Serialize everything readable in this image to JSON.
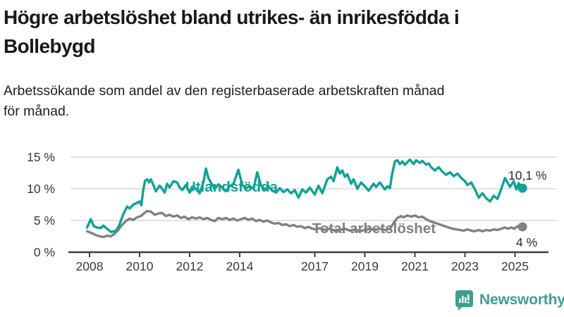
{
  "header": {
    "title": "Högre arbetslöshet bland utrikes- än inrikesfödda i Bollebygd",
    "title_lines": [
      "Högre arbetslöshet bland utrikes- än inrikesfödda i",
      "Bollebygd"
    ],
    "subtitle": "Arbetssökande som andel av den registerbaserade arbetskraften månad för månad.",
    "subtitle_lines": [
      "Arbetssökande som andel av den registerbaserade arbetskraften månad",
      "för månad."
    ]
  },
  "footer": {
    "brand": "Newsworthy"
  },
  "colors": {
    "accent_teal": "#10A296",
    "line_gray": "#808085",
    "brand_teal": "#3E9F90",
    "grid": "#DADADA",
    "axis": "#3F3F3F",
    "tick_text": "#3A3A3A",
    "annotation_text": "#2B2B2B",
    "background": "#FFFFFF"
  },
  "chart_data": {
    "type": "line",
    "title": "Högre arbetslöshet bland utrikes- än inrikesfödda i Bollebygd",
    "subtitle": "Arbetssökande som andel av den registerbaserade arbetskraften månad för månad.",
    "unit": "%",
    "xlabel": "",
    "ylabel": "",
    "xlim": [
      2007.8,
      2025.7
    ],
    "ylim": [
      0,
      15
    ],
    "grid": "horizontal",
    "legend_position": "inline-labels",
    "x_ticks": [
      "2008",
      "2010",
      "2012",
      "2014",
      "2017",
      "2019",
      "2021",
      "2023",
      "2025"
    ],
    "x_tick_years": [
      2008,
      2010,
      2012,
      2014,
      2017,
      2019,
      2021,
      2023,
      2025
    ],
    "y_ticks": [
      {
        "value": 0,
        "label": "0 %"
      },
      {
        "value": 5,
        "label": "5 %"
      },
      {
        "value": 10,
        "label": "10 %"
      },
      {
        "value": 15,
        "label": "15 %"
      }
    ],
    "series": [
      {
        "name": "Total arbetslöshet",
        "color": "#808085",
        "end_label": "4 %",
        "end_value": 4.0,
        "points": [
          [
            2007.9,
            3.3
          ],
          [
            2008.1,
            3.0
          ],
          [
            2008.25,
            2.7
          ],
          [
            2008.4,
            2.5
          ],
          [
            2008.55,
            2.4
          ],
          [
            2008.7,
            2.6
          ],
          [
            2008.85,
            2.5
          ],
          [
            2009.0,
            2.9
          ],
          [
            2009.15,
            3.5
          ],
          [
            2009.3,
            4.3
          ],
          [
            2009.45,
            4.9
          ],
          [
            2009.6,
            5.3
          ],
          [
            2009.75,
            5.1
          ],
          [
            2009.9,
            5.5
          ],
          [
            2010.05,
            5.7
          ],
          [
            2010.2,
            6.2
          ],
          [
            2010.3,
            6.5
          ],
          [
            2010.45,
            6.4
          ],
          [
            2010.6,
            5.9
          ],
          [
            2010.75,
            6.1
          ],
          [
            2010.9,
            6.2
          ],
          [
            2011.05,
            5.7
          ],
          [
            2011.2,
            5.9
          ],
          [
            2011.35,
            5.6
          ],
          [
            2011.5,
            5.8
          ],
          [
            2011.65,
            5.4
          ],
          [
            2011.8,
            5.6
          ],
          [
            2011.95,
            5.2
          ],
          [
            2012.1,
            5.5
          ],
          [
            2012.25,
            5.3
          ],
          [
            2012.4,
            5.5
          ],
          [
            2012.55,
            5.2
          ],
          [
            2012.7,
            5.4
          ],
          [
            2012.85,
            5.1
          ],
          [
            2013.0,
            4.9
          ],
          [
            2013.15,
            5.4
          ],
          [
            2013.3,
            5.2
          ],
          [
            2013.45,
            5.4
          ],
          [
            2013.6,
            5.1
          ],
          [
            2013.75,
            5.3
          ],
          [
            2013.9,
            5.0
          ],
          [
            2014.05,
            5.2
          ],
          [
            2014.2,
            5.4
          ],
          [
            2014.35,
            5.1
          ],
          [
            2014.5,
            5.3
          ],
          [
            2014.65,
            4.9
          ],
          [
            2014.8,
            5.1
          ],
          [
            2014.95,
            4.8
          ],
          [
            2015.1,
            5.0
          ],
          [
            2015.25,
            4.7
          ],
          [
            2015.4,
            4.5
          ],
          [
            2015.55,
            4.6
          ],
          [
            2015.7,
            4.3
          ],
          [
            2015.85,
            4.4
          ],
          [
            2016.0,
            4.1
          ],
          [
            2016.15,
            4.3
          ],
          [
            2016.3,
            4.0
          ],
          [
            2016.45,
            4.1
          ],
          [
            2016.6,
            3.8
          ],
          [
            2016.75,
            4.0
          ],
          [
            2016.9,
            3.7
          ],
          [
            2017.05,
            3.6
          ],
          [
            2017.2,
            3.8
          ],
          [
            2017.4,
            3.5
          ],
          [
            2017.6,
            3.7
          ],
          [
            2017.8,
            3.4
          ],
          [
            2018.0,
            3.5
          ],
          [
            2018.2,
            3.7
          ],
          [
            2018.4,
            3.4
          ],
          [
            2018.6,
            3.6
          ],
          [
            2018.8,
            3.3
          ],
          [
            2019.0,
            3.5
          ],
          [
            2019.2,
            3.7
          ],
          [
            2019.4,
            3.5
          ],
          [
            2019.6,
            3.7
          ],
          [
            2019.8,
            3.5
          ],
          [
            2020.0,
            3.7
          ],
          [
            2020.15,
            4.6
          ],
          [
            2020.3,
            5.4
          ],
          [
            2020.45,
            5.7
          ],
          [
            2020.55,
            5.5
          ],
          [
            2020.7,
            5.8
          ],
          [
            2020.85,
            5.6
          ],
          [
            2021.0,
            5.8
          ],
          [
            2021.15,
            5.5
          ],
          [
            2021.3,
            5.6
          ],
          [
            2021.45,
            5.2
          ],
          [
            2021.6,
            4.9
          ],
          [
            2021.75,
            4.7
          ],
          [
            2021.9,
            4.5
          ],
          [
            2022.05,
            4.3
          ],
          [
            2022.2,
            4.1
          ],
          [
            2022.35,
            3.9
          ],
          [
            2022.5,
            3.7
          ],
          [
            2022.65,
            3.6
          ],
          [
            2022.8,
            3.5
          ],
          [
            2022.95,
            3.4
          ],
          [
            2023.1,
            3.6
          ],
          [
            2023.25,
            3.4
          ],
          [
            2023.4,
            3.3
          ],
          [
            2023.55,
            3.5
          ],
          [
            2023.7,
            3.3
          ],
          [
            2023.85,
            3.5
          ],
          [
            2024.0,
            3.4
          ],
          [
            2024.15,
            3.6
          ],
          [
            2024.3,
            3.5
          ],
          [
            2024.45,
            3.7
          ],
          [
            2024.6,
            3.9
          ],
          [
            2024.72,
            3.7
          ],
          [
            2024.85,
            3.9
          ],
          [
            2024.97,
            3.7
          ],
          [
            2025.1,
            4.1
          ],
          [
            2025.2,
            3.9
          ],
          [
            2025.3,
            4.0
          ]
        ]
      },
      {
        "name": "Utlandsfödda",
        "color": "#10A296",
        "end_label": "10,1 %",
        "end_value": 10.1,
        "points": [
          [
            2007.9,
            3.9
          ],
          [
            2008.05,
            5.2
          ],
          [
            2008.17,
            4.1
          ],
          [
            2008.3,
            3.9
          ],
          [
            2008.45,
            3.8
          ],
          [
            2008.55,
            4.2
          ],
          [
            2008.7,
            3.7
          ],
          [
            2008.85,
            3.2
          ],
          [
            2009.0,
            3.3
          ],
          [
            2009.1,
            3.6
          ],
          [
            2009.2,
            4.4
          ],
          [
            2009.35,
            6.0
          ],
          [
            2009.5,
            7.2
          ],
          [
            2009.6,
            6.9
          ],
          [
            2009.75,
            7.5
          ],
          [
            2009.9,
            7.8
          ],
          [
            2010.0,
            8.0
          ],
          [
            2010.07,
            7.4
          ],
          [
            2010.15,
            9.9
          ],
          [
            2010.22,
            11.3
          ],
          [
            2010.3,
            11.5
          ],
          [
            2010.38,
            11.0
          ],
          [
            2010.45,
            11.5
          ],
          [
            2010.55,
            10.6
          ],
          [
            2010.65,
            9.6
          ],
          [
            2010.8,
            10.5
          ],
          [
            2010.9,
            10.0
          ],
          [
            2011.0,
            9.4
          ],
          [
            2011.1,
            10.8
          ],
          [
            2011.2,
            10.2
          ],
          [
            2011.35,
            11.2
          ],
          [
            2011.5,
            11.0
          ],
          [
            2011.6,
            10.2
          ],
          [
            2011.7,
            9.8
          ],
          [
            2011.85,
            10.6
          ],
          [
            2012.0,
            9.4
          ],
          [
            2012.1,
            10.3
          ],
          [
            2012.25,
            10.0
          ],
          [
            2012.4,
            9.3
          ],
          [
            2012.55,
            11.0
          ],
          [
            2012.65,
            13.2
          ],
          [
            2012.75,
            11.7
          ],
          [
            2012.9,
            10.6
          ],
          [
            2013.0,
            10.0
          ],
          [
            2013.15,
            10.7
          ],
          [
            2013.3,
            10.2
          ],
          [
            2013.45,
            9.6
          ],
          [
            2013.6,
            10.4
          ],
          [
            2013.75,
            10.8
          ],
          [
            2013.95,
            13.0
          ],
          [
            2014.1,
            10.6
          ],
          [
            2014.25,
            10.1
          ],
          [
            2014.4,
            10.4
          ],
          [
            2014.55,
            10.0
          ],
          [
            2014.7,
            12.6
          ],
          [
            2014.85,
            10.5
          ],
          [
            2015.0,
            9.9
          ],
          [
            2015.15,
            10.4
          ],
          [
            2015.3,
            9.7
          ],
          [
            2015.45,
            9.4
          ],
          [
            2015.6,
            10.1
          ],
          [
            2015.75,
            9.5
          ],
          [
            2015.9,
            9.9
          ],
          [
            2016.05,
            9.3
          ],
          [
            2016.2,
            9.8
          ],
          [
            2016.35,
            8.6
          ],
          [
            2016.5,
            9.9
          ],
          [
            2016.65,
            9.4
          ],
          [
            2016.8,
            10.2
          ],
          [
            2017.0,
            9.1
          ],
          [
            2017.15,
            10.5
          ],
          [
            2017.3,
            9.3
          ],
          [
            2017.5,
            11.5
          ],
          [
            2017.65,
            11.9
          ],
          [
            2017.75,
            11.2
          ],
          [
            2017.9,
            13.4
          ],
          [
            2018.0,
            12.4
          ],
          [
            2018.1,
            12.9
          ],
          [
            2018.2,
            11.9
          ],
          [
            2018.3,
            12.3
          ],
          [
            2018.45,
            10.8
          ],
          [
            2018.55,
            11.5
          ],
          [
            2018.7,
            10.0
          ],
          [
            2018.85,
            11.0
          ],
          [
            2019.0,
            10.4
          ],
          [
            2019.15,
            9.7
          ],
          [
            2019.35,
            10.8
          ],
          [
            2019.45,
            10.3
          ],
          [
            2019.6,
            11.0
          ],
          [
            2019.8,
            9.9
          ],
          [
            2019.9,
            10.4
          ],
          [
            2020.0,
            10.1
          ],
          [
            2020.1,
            12.5
          ],
          [
            2020.2,
            14.3
          ],
          [
            2020.3,
            14.5
          ],
          [
            2020.4,
            13.9
          ],
          [
            2020.5,
            14.3
          ],
          [
            2020.6,
            13.8
          ],
          [
            2020.7,
            14.2
          ],
          [
            2020.8,
            14.6
          ],
          [
            2020.95,
            13.9
          ],
          [
            2021.05,
            14.5
          ],
          [
            2021.2,
            14.1
          ],
          [
            2021.3,
            14.4
          ],
          [
            2021.45,
            13.8
          ],
          [
            2021.55,
            14.0
          ],
          [
            2021.65,
            13.4
          ],
          [
            2021.8,
            12.9
          ],
          [
            2021.95,
            13.4
          ],
          [
            2022.1,
            12.7
          ],
          [
            2022.25,
            12.2
          ],
          [
            2022.4,
            12.6
          ],
          [
            2022.55,
            12.0
          ],
          [
            2022.7,
            12.4
          ],
          [
            2022.85,
            11.7
          ],
          [
            2023.0,
            11.2
          ],
          [
            2023.1,
            10.6
          ],
          [
            2023.25,
            11.0
          ],
          [
            2023.4,
            9.9
          ],
          [
            2023.55,
            8.6
          ],
          [
            2023.7,
            9.3
          ],
          [
            2023.85,
            8.5
          ],
          [
            2024.0,
            8.0
          ],
          [
            2024.15,
            8.9
          ],
          [
            2024.3,
            8.4
          ],
          [
            2024.45,
            10.0
          ],
          [
            2024.6,
            11.7
          ],
          [
            2024.8,
            10.3
          ],
          [
            2024.95,
            11.2
          ],
          [
            2025.05,
            9.9
          ],
          [
            2025.15,
            10.9
          ],
          [
            2025.3,
            10.1
          ]
        ]
      }
    ]
  }
}
